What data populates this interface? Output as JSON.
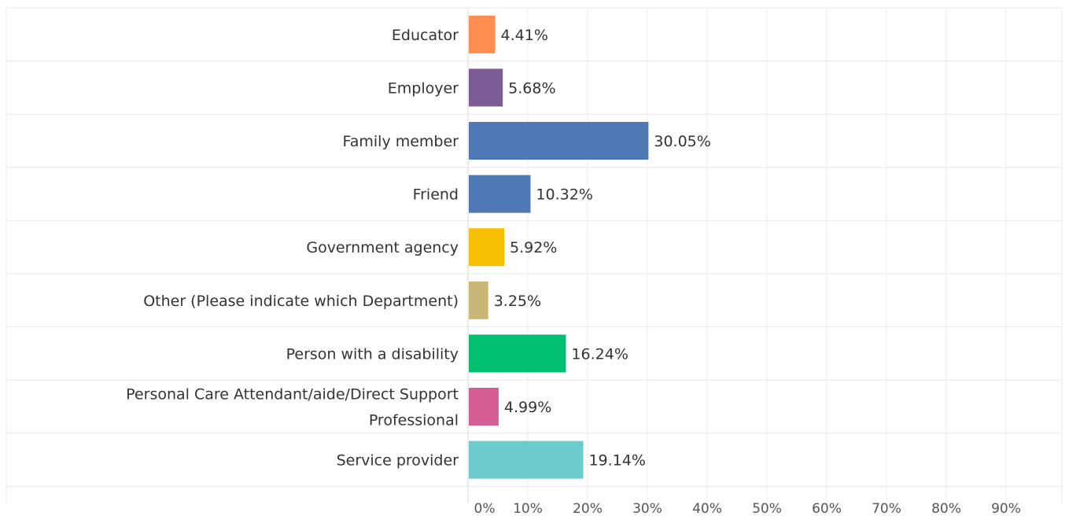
{
  "chart_data": {
    "type": "bar",
    "orientation": "horizontal",
    "title": "",
    "xlabel": "",
    "ylabel": "",
    "xlim": [
      0,
      100
    ],
    "x_ticks": [
      "0%",
      "10%",
      "20%",
      "30%",
      "40%",
      "50%",
      "60%",
      "70%",
      "80%",
      "90%"
    ],
    "grid": true,
    "categories": [
      "Educator",
      "Employer",
      "Family member",
      "Friend",
      "Government agency",
      "Other (Please indicate which Department)",
      "Person with a disability",
      "Personal Care Attendant/aide/Direct Support Professional",
      "Service provider"
    ],
    "category_lines": [
      [
        "Educator"
      ],
      [
        "Employer"
      ],
      [
        "Family member"
      ],
      [
        "Friend"
      ],
      [
        "Government agency"
      ],
      [
        "Other (Please indicate which Department)"
      ],
      [
        "Person with a disability"
      ],
      [
        "Personal Care Attendant/aide/Direct Support",
        "Professional"
      ],
      [
        "Service provider"
      ]
    ],
    "values": [
      4.41,
      5.68,
      30.05,
      10.32,
      5.92,
      3.25,
      16.24,
      4.99,
      19.14
    ],
    "value_labels": [
      "4.41%",
      "5.68%",
      "30.05%",
      "10.32%",
      "5.92%",
      "3.25%",
      "16.24%",
      "4.99%",
      "19.14%"
    ],
    "colors": [
      "#ff8c50",
      "#7b5b93",
      "#4e79b5",
      "#4e79b5",
      "#f6bf00",
      "#c9b576",
      "#00bf6f",
      "#d45e93",
      "#6ccbcc"
    ]
  }
}
